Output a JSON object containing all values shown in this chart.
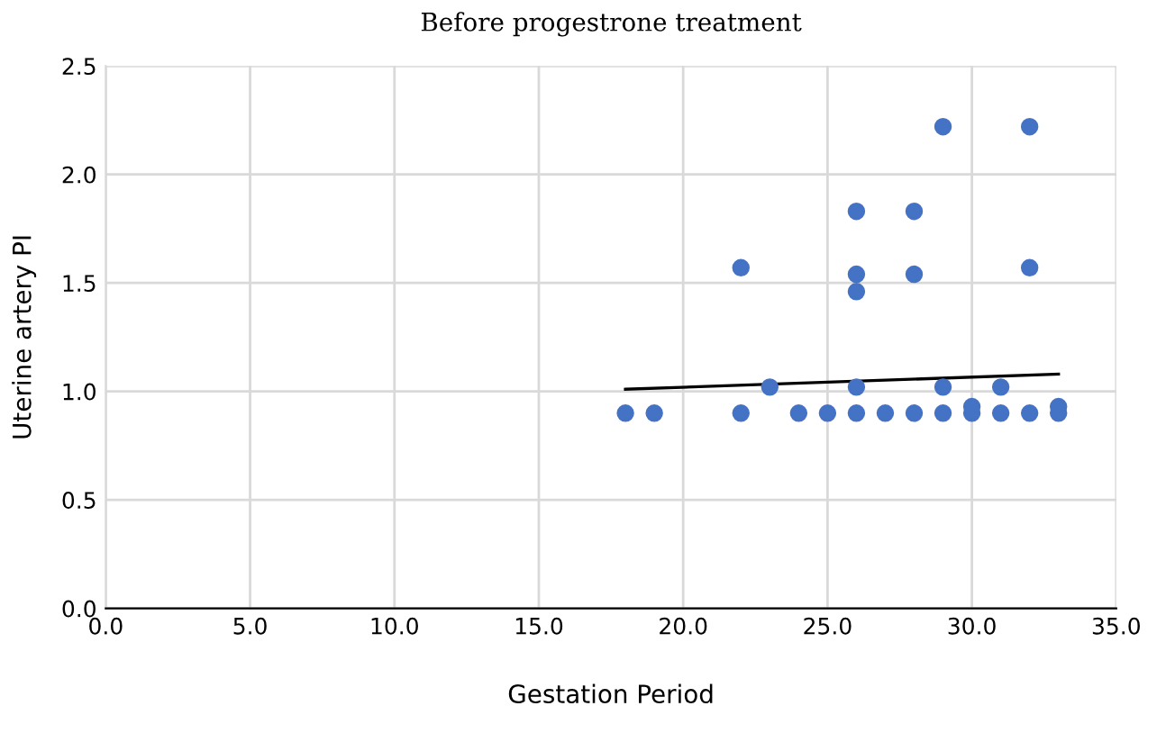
{
  "chart_data": {
    "type": "scatter",
    "title": "Before progestrone treatment",
    "xlabel": "Gestation Period",
    "ylabel": "Uterine artery PI",
    "xlim": [
      0,
      35
    ],
    "xticks": [
      {
        "value": 0,
        "label": "0.0"
      },
      {
        "value": 5,
        "label": "5.0"
      },
      {
        "value": 10,
        "label": "10.0"
      },
      {
        "value": 15,
        "label": "15.0"
      },
      {
        "value": 20,
        "label": "20.0"
      },
      {
        "value": 25,
        "label": "25.0"
      },
      {
        "value": 30,
        "label": "30.0"
      },
      {
        "value": 35,
        "label": "35.0"
      }
    ],
    "ylim": [
      0,
      2.5
    ],
    "yticks": [
      {
        "value": 0,
        "label": "0.0"
      },
      {
        "value": 0.5,
        "label": "0.5"
      },
      {
        "value": 1,
        "label": "1.0"
      },
      {
        "value": 1.5,
        "label": "1.5"
      },
      {
        "value": 2,
        "label": "2.0"
      },
      {
        "value": 2.5,
        "label": "2.5"
      }
    ],
    "grid": true,
    "marker": "circle",
    "series": [
      {
        "color": "#4472c4",
        "x": [
          18,
          19,
          22,
          24,
          25,
          26,
          27,
          28,
          29,
          30,
          31,
          32,
          33,
          30,
          33,
          23,
          26,
          29,
          31,
          22,
          32,
          26,
          28,
          26,
          26,
          28,
          29,
          32
        ],
        "values": [
          0.9,
          0.9,
          0.9,
          0.9,
          0.9,
          0.9,
          0.9,
          0.9,
          0.9,
          0.9,
          0.9,
          0.9,
          0.9,
          0.93,
          0.93,
          1.02,
          1.02,
          1.02,
          1.02,
          1.57,
          1.57,
          1.54,
          1.54,
          1.46,
          1.83,
          1.83,
          2.22,
          2.22
        ]
      },
      {
        "type": "line",
        "color": "#000000",
        "x": [
          18,
          33
        ],
        "values": [
          1.01,
          1.08
        ],
        "marker": "none"
      }
    ]
  }
}
